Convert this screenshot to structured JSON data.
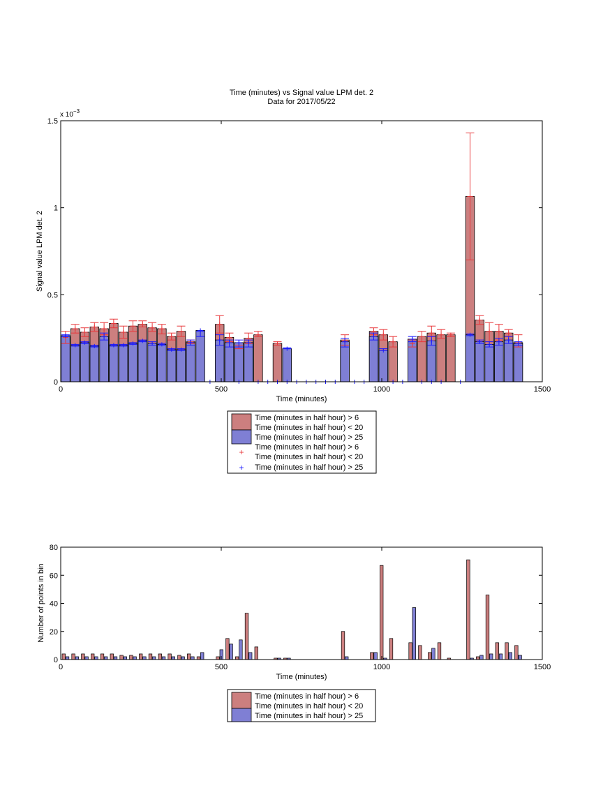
{
  "chart_data": [
    {
      "type": "bar",
      "title": "Time (minutes) vs Signal value LPM det. 2",
      "subtitle": "Data for 2017/05/22",
      "xlabel": "Time (minutes)",
      "ylabel": "Signal value LPM det. 2",
      "exponent_label": "x 10",
      "exponent_power": "−3",
      "xlim": [
        0,
        1500
      ],
      "ylim": [
        0,
        1.5
      ],
      "xticks": [
        0,
        500,
        1000,
        1500
      ],
      "yticks": [
        0,
        0.5,
        1,
        1.5
      ],
      "xtick_labels": [
        "0",
        "500",
        "1000",
        "1500"
      ],
      "ytick_labels": [
        "0",
        "0.5",
        "1",
        "1.5"
      ],
      "grid": false,
      "legend_position": "below",
      "series": [
        {
          "name": "Time (minutes in half hour) > 6\nTime (minutes in half hour) < 20",
          "color": "#cc7f7f",
          "err_color": "#e8383b",
          "x": [
            15,
            45,
            75,
            105,
            135,
            165,
            195,
            225,
            255,
            285,
            315,
            345,
            375,
            405,
            495,
            525,
            555,
            585,
            615,
            675,
            885,
            975,
            1005,
            1035,
            1095,
            1125,
            1155,
            1185,
            1215,
            1275,
            1305,
            1335,
            1365,
            1395,
            1425
          ],
          "values": [
            0.255,
            0.305,
            0.285,
            0.315,
            0.305,
            0.335,
            0.285,
            0.32,
            0.33,
            0.31,
            0.305,
            0.26,
            0.29,
            0.23,
            0.33,
            0.255,
            0.2,
            0.25,
            0.27,
            0.22,
            0.24,
            0.29,
            0.27,
            0.23,
            0.22,
            0.26,
            0.28,
            0.27,
            0.27,
            1.065,
            0.355,
            0.29,
            0.29,
            0.28,
            0.225
          ],
          "err_low": [
            0.22,
            0.28,
            0.26,
            0.29,
            0.27,
            0.31,
            0.25,
            0.29,
            0.315,
            0.29,
            0.275,
            0.24,
            0.26,
            0.22,
            0.28,
            0.23,
            0.19,
            0.22,
            0.26,
            0.21,
            0.21,
            0.27,
            0.24,
            0.2,
            0.2,
            0.23,
            0.26,
            0.25,
            0.26,
            0.7,
            0.33,
            0.23,
            0.24,
            0.26,
            0.2
          ],
          "err_high": [
            0.29,
            0.33,
            0.31,
            0.34,
            0.34,
            0.36,
            0.32,
            0.35,
            0.35,
            0.34,
            0.33,
            0.28,
            0.32,
            0.24,
            0.38,
            0.28,
            0.21,
            0.28,
            0.29,
            0.23,
            0.27,
            0.31,
            0.3,
            0.26,
            0.24,
            0.29,
            0.32,
            0.3,
            0.28,
            1.43,
            0.38,
            0.34,
            0.33,
            0.3,
            0.27
          ]
        },
        {
          "name": "Time (minutes in half hour) > 25",
          "color": "#7f7fd4",
          "err_color": "#1a1aff",
          "x": [
            15,
            45,
            75,
            105,
            135,
            165,
            195,
            225,
            255,
            285,
            315,
            345,
            375,
            405,
            435,
            495,
            525,
            555,
            585,
            705,
            885,
            975,
            1005,
            1095,
            1155,
            1275,
            1305,
            1335,
            1365,
            1395,
            1425
          ],
          "values": [
            0.265,
            0.21,
            0.225,
            0.205,
            0.26,
            0.21,
            0.21,
            0.22,
            0.235,
            0.22,
            0.215,
            0.185,
            0.185,
            0.225,
            0.295,
            0.24,
            0.225,
            0.225,
            0.225,
            0.19,
            0.23,
            0.26,
            0.18,
            0.245,
            0.235,
            0.27,
            0.23,
            0.215,
            0.23,
            0.24,
            0.22
          ],
          "err_low": [
            0.26,
            0.205,
            0.22,
            0.2,
            0.24,
            0.205,
            0.205,
            0.215,
            0.23,
            0.21,
            0.21,
            0.18,
            0.18,
            0.21,
            0.26,
            0.21,
            0.2,
            0.2,
            0.2,
            0.19,
            0.2,
            0.24,
            0.18,
            0.23,
            0.21,
            0.265,
            0.22,
            0.2,
            0.21,
            0.22,
            0.21
          ],
          "err_high": [
            0.27,
            0.215,
            0.23,
            0.21,
            0.28,
            0.215,
            0.215,
            0.225,
            0.24,
            0.23,
            0.22,
            0.19,
            0.19,
            0.24,
            0.29,
            0.27,
            0.24,
            0.24,
            0.24,
            0.195,
            0.25,
            0.28,
            0.19,
            0.26,
            0.26,
            0.275,
            0.24,
            0.23,
            0.25,
            0.26,
            0.23
          ]
        }
      ],
      "empty_bin_markers_x": [
        465,
        555,
        615,
        645,
        675,
        705,
        735,
        765,
        795,
        825,
        855,
        915,
        945,
        1035,
        1065,
        1125,
        1155,
        1185,
        1245
      ]
    },
    {
      "type": "bar",
      "xlabel": "Time (minutes)",
      "ylabel": "Number of points in bin",
      "xlim": [
        0,
        1500
      ],
      "ylim": [
        0,
        80
      ],
      "xticks": [
        0,
        500,
        1000,
        1500
      ],
      "yticks": [
        0,
        20,
        40,
        60,
        80
      ],
      "xtick_labels": [
        "0",
        "500",
        "1000",
        "1500"
      ],
      "ytick_labels": [
        "0",
        "20",
        "40",
        "60",
        "80"
      ],
      "grid": false,
      "legend_position": "below",
      "series": [
        {
          "name": "Time (minutes in half hour) > 6\nTime (minutes in half hour) < 20",
          "color": "#cc7f7f",
          "x": [
            15,
            45,
            75,
            105,
            135,
            165,
            195,
            225,
            255,
            285,
            315,
            345,
            375,
            405,
            435,
            495,
            525,
            555,
            585,
            615,
            675,
            705,
            885,
            975,
            1005,
            1035,
            1095,
            1125,
            1155,
            1185,
            1215,
            1275,
            1305,
            1335,
            1365,
            1395,
            1425
          ],
          "values": [
            4,
            4,
            4,
            4,
            4,
            4,
            3,
            3,
            4,
            4,
            4,
            4,
            3,
            4,
            2,
            2,
            15,
            2,
            33,
            9,
            1,
            1,
            20,
            5,
            67,
            15,
            12,
            10,
            5,
            12,
            1,
            71,
            2,
            46,
            12,
            12,
            10
          ]
        },
        {
          "name": "Time (minutes in half hour) > 25",
          "color": "#7f7fd4",
          "x": [
            15,
            45,
            75,
            105,
            135,
            165,
            195,
            225,
            255,
            285,
            315,
            345,
            375,
            405,
            435,
            495,
            525,
            555,
            585,
            675,
            705,
            885,
            975,
            1005,
            1095,
            1155,
            1275,
            1305,
            1335,
            1365,
            1395,
            1425
          ],
          "values": [
            2,
            2,
            2,
            2,
            2,
            2,
            2,
            2,
            2,
            2,
            2,
            2,
            2,
            2,
            5,
            7,
            11,
            14,
            5,
            1,
            1,
            2,
            5,
            1,
            37,
            8,
            1,
            3,
            4,
            4,
            5,
            3
          ]
        }
      ]
    }
  ]
}
